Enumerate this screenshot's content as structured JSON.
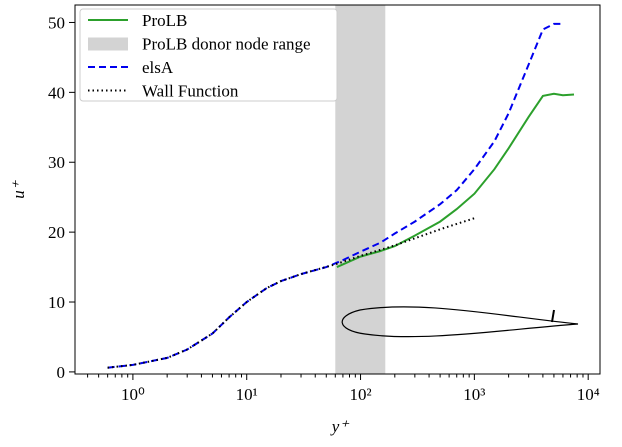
{
  "chart_data": {
    "type": "line",
    "xlabel": "y⁺",
    "ylabel": "u⁺",
    "xscale": "log",
    "xlim": [
      0.31,
      12700
    ],
    "ylim": [
      -0.3,
      52.5
    ],
    "xticks": [
      {
        "value": 1,
        "label": "10⁰"
      },
      {
        "value": 10,
        "label": "10¹"
      },
      {
        "value": 100,
        "label": "10²"
      },
      {
        "value": 1000,
        "label": "10³"
      },
      {
        "value": 10000,
        "label": "10⁴"
      }
    ],
    "xminorticks": [
      0.4,
      0.5,
      0.6,
      0.7,
      0.8,
      0.9,
      2,
      3,
      4,
      5,
      6,
      7,
      8,
      9,
      20,
      30,
      40,
      50,
      60,
      70,
      80,
      90,
      200,
      300,
      400,
      500,
      600,
      700,
      800,
      900,
      2000,
      3000,
      4000,
      5000,
      6000,
      7000,
      8000,
      9000
    ],
    "yticks": [
      0,
      10,
      20,
      30,
      40,
      50
    ],
    "legend": "upper left",
    "span": {
      "name": "ProLB donor node range",
      "color": "#d3d3d3",
      "x": [
        60,
        165
      ]
    },
    "series": [
      {
        "name": "ProLB",
        "color": "#2ca02c",
        "style": "solid",
        "x": [
          62,
          100,
          150,
          200,
          300,
          500,
          700,
          1000,
          1500,
          2000,
          3000,
          4000,
          5000,
          6000,
          7500
        ],
        "values": [
          15.0,
          16.5,
          17.3,
          18.0,
          19.5,
          21.5,
          23.3,
          25.5,
          29.0,
          32.0,
          36.5,
          39.5,
          39.8,
          39.6,
          39.7
        ]
      },
      {
        "name": "elsA",
        "color": "#0000ee",
        "style": "dashed",
        "x": [
          0.6,
          1,
          2,
          3,
          5,
          7,
          10,
          15,
          20,
          30,
          50,
          70,
          100,
          150,
          200,
          300,
          500,
          700,
          1000,
          1500,
          2000,
          3000,
          4000,
          5000,
          6000
        ],
        "values": [
          0.6,
          1.0,
          2.0,
          3.2,
          5.5,
          7.8,
          10.0,
          12.0,
          13.0,
          14.0,
          15.0,
          16.0,
          17.2,
          18.5,
          19.8,
          21.5,
          24.0,
          26.0,
          29.0,
          33.0,
          37.0,
          44.0,
          49.0,
          49.8,
          49.8
        ]
      },
      {
        "name": "Wall Function",
        "color": "#000000",
        "style": "dotted",
        "x": [
          0.6,
          1,
          2,
          3,
          5,
          7,
          10,
          15,
          20,
          30,
          60,
          100,
          200,
          500,
          1000
        ],
        "values": [
          0.6,
          1.0,
          2.0,
          3.2,
          5.5,
          7.8,
          10.0,
          12.0,
          13.0,
          14.0,
          15.4,
          16.6,
          18.1,
          20.4,
          22.0
        ]
      }
    ]
  }
}
